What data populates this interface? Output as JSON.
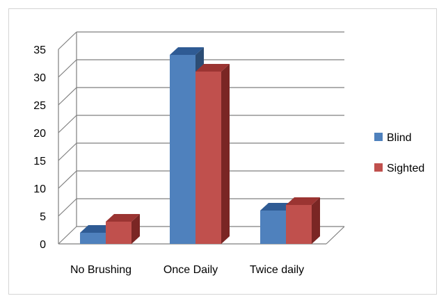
{
  "chart_data": {
    "type": "bar",
    "title": "",
    "xlabel": "",
    "ylabel": "",
    "categories": [
      "No Brushing",
      "Once Daily",
      "Twice daily"
    ],
    "series": [
      {
        "name": "Blind",
        "values": [
          2,
          34,
          6
        ],
        "color": "#4f81bd",
        "top_color": "#2f5b94",
        "side_color": "#2c4d75"
      },
      {
        "name": "Sighted",
        "values": [
          4,
          31,
          7
        ],
        "color": "#c0504d",
        "top_color": "#9b3432",
        "side_color": "#7a2624"
      }
    ],
    "ylim": [
      0,
      35
    ],
    "yticks": [
      "0",
      "5",
      "10",
      "15",
      "20",
      "25",
      "30",
      "35"
    ],
    "grid": true,
    "legend_position": "right"
  }
}
